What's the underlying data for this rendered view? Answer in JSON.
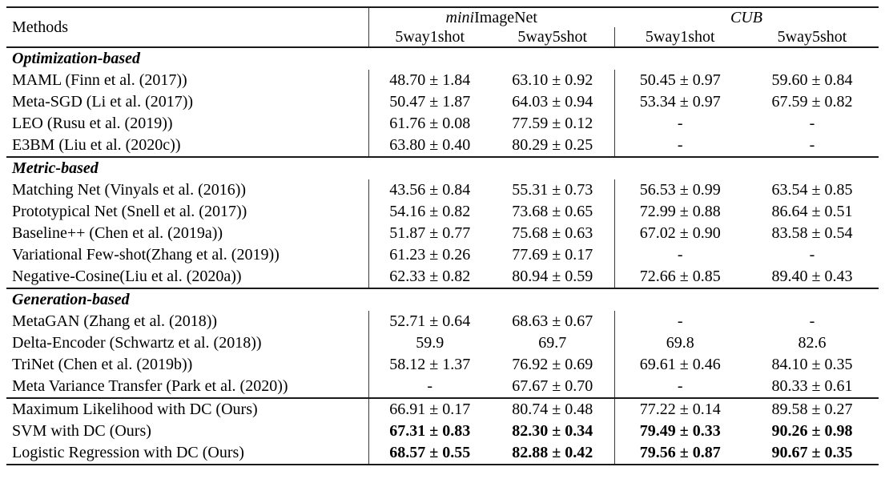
{
  "table": {
    "header": {
      "methods_label": "Methods",
      "groups": [
        {
          "name_italic": "mini",
          "name_normal": "ImageNet"
        },
        {
          "name_italic": "CUB",
          "name_normal": ""
        }
      ],
      "subcolumns": [
        "5way1shot",
        "5way5shot",
        "5way1shot",
        "5way5shot"
      ]
    },
    "sections": [
      {
        "title": "Optimization-based",
        "rows": [
          {
            "method": "MAML (Finn et al. (2017))",
            "values": [
              "48.70 ± 1.84",
              "63.10 ± 0.92",
              "50.45 ± 0.97",
              "59.60 ± 0.84"
            ],
            "bold_values": false
          },
          {
            "method": "Meta-SGD (Li et al. (2017))",
            "values": [
              "50.47 ± 1.87",
              "64.03 ± 0.94",
              "53.34 ± 0.97",
              "67.59 ± 0.82"
            ],
            "bold_values": false
          },
          {
            "method": "LEO (Rusu et al. (2019))",
            "values": [
              "61.76 ± 0.08",
              "77.59 ± 0.12",
              "-",
              "-"
            ],
            "bold_values": false
          },
          {
            "method": "E3BM (Liu et al. (2020c))",
            "values": [
              "63.80 ± 0.40",
              "80.29 ± 0.25",
              "-",
              "-"
            ],
            "bold_values": false
          }
        ]
      },
      {
        "title": "Metric-based",
        "rows": [
          {
            "method": "Matching Net (Vinyals et al. (2016))",
            "values": [
              "43.56 ± 0.84",
              "55.31 ± 0.73",
              "56.53 ± 0.99",
              "63.54 ± 0.85"
            ],
            "bold_values": false
          },
          {
            "method": "Prototypical Net (Snell et al. (2017))",
            "values": [
              "54.16 ± 0.82",
              "73.68 ± 0.65",
              "72.99 ± 0.88",
              "86.64 ± 0.51"
            ],
            "bold_values": false
          },
          {
            "method": "Baseline++ (Chen et al. (2019a))",
            "values": [
              "51.87 ± 0.77",
              "75.68 ± 0.63",
              "67.02 ± 0.90",
              "83.58 ± 0.54"
            ],
            "bold_values": false
          },
          {
            "method": "Variational Few-shot(Zhang et al. (2019))",
            "values": [
              "61.23 ± 0.26",
              "77.69 ± 0.17",
              "-",
              "-"
            ],
            "bold_values": false
          },
          {
            "method": "Negative-Cosine(Liu et al. (2020a))",
            "values": [
              "62.33 ± 0.82",
              "80.94 ± 0.59",
              "72.66 ± 0.85",
              "89.40 ± 0.43"
            ],
            "bold_values": false
          }
        ]
      },
      {
        "title": "Generation-based",
        "rows": [
          {
            "method": "MetaGAN (Zhang et al. (2018))",
            "values": [
              "52.71 ± 0.64",
              "68.63 ± 0.67",
              "-",
              "-"
            ],
            "bold_values": false
          },
          {
            "method": "Delta-Encoder (Schwartz et al. (2018))",
            "values": [
              "59.9",
              "69.7",
              "69.8",
              "82.6"
            ],
            "bold_values": false
          },
          {
            "method": "TriNet (Chen et al. (2019b))",
            "values": [
              "58.12 ± 1.37",
              "76.92 ± 0.69",
              "69.61 ± 0.46",
              "84.10 ± 0.35"
            ],
            "bold_values": false
          },
          {
            "method": "Meta Variance Transfer (Park et al. (2020))",
            "values": [
              "-",
              "67.67 ± 0.70",
              "-",
              "80.33 ± 0.61"
            ],
            "bold_values": false
          }
        ]
      },
      {
        "title": null,
        "rows": [
          {
            "method": "Maximum Likelihood with DC (Ours)",
            "values": [
              "66.91 ± 0.17",
              "80.74 ± 0.48",
              "77.22 ± 0.14",
              "89.58 ± 0.27"
            ],
            "bold_values": false
          },
          {
            "method": "SVM with DC (Ours)",
            "values": [
              "67.31 ± 0.83",
              "82.30 ± 0.34",
              "79.49 ± 0.33",
              "90.26 ± 0.98"
            ],
            "bold_values": true
          },
          {
            "method": "Logistic Regression with DC (Ours)",
            "values": [
              "68.57 ± 0.55",
              "82.88 ± 0.42",
              "79.56 ± 0.87",
              "90.67 ± 0.35"
            ],
            "bold_values": true
          }
        ]
      }
    ]
  }
}
